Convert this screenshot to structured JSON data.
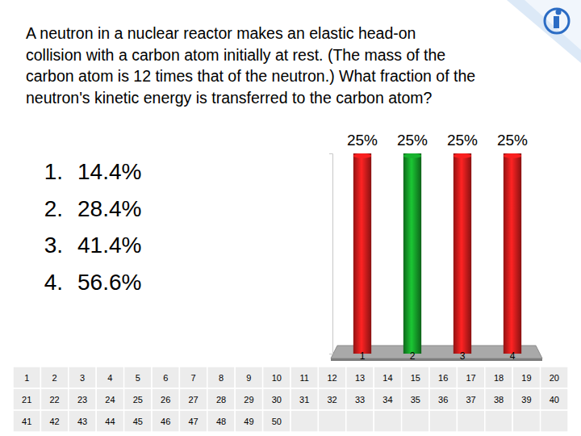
{
  "question": {
    "lines": [
      "A neutron in a nuclear reactor makes an elastic head-on",
      "collision with a carbon atom initially at rest. (The mass of the",
      "carbon atom is 12 times that of the neutron.) What fraction of the",
      "neutron's kinetic energy is transferred to the carbon atom?"
    ]
  },
  "options": [
    {
      "number": "1.",
      "text": "14.4%"
    },
    {
      "number": "2.",
      "text": "28.4%"
    },
    {
      "number": "3.",
      "text": "41.4%"
    },
    {
      "number": "4.",
      "text": "56.6%"
    }
  ],
  "chart_data": {
    "type": "bar",
    "categories": [
      "1",
      "2",
      "3",
      "4"
    ],
    "values": [
      25,
      25,
      25,
      25
    ],
    "value_labels": [
      "25%",
      "25%",
      "25%",
      "25%"
    ],
    "colors": [
      "#e01c1c",
      "#16a12a",
      "#e01c1c",
      "#e01c1c"
    ],
    "ylim": [
      0,
      25
    ],
    "yticks": [
      0,
      25
    ],
    "data_labels": true,
    "tick_labels": "x",
    "grid": false
  },
  "response_grid": {
    "cells": [
      1,
      2,
      3,
      4,
      5,
      6,
      7,
      8,
      9,
      10,
      11,
      12,
      13,
      14,
      15,
      16,
      17,
      18,
      19,
      20,
      21,
      22,
      23,
      24,
      25,
      26,
      27,
      28,
      29,
      30,
      31,
      32,
      33,
      34,
      35,
      36,
      37,
      38,
      39,
      40,
      41,
      42,
      43,
      44,
      45,
      46,
      47,
      48,
      49,
      50
    ]
  }
}
